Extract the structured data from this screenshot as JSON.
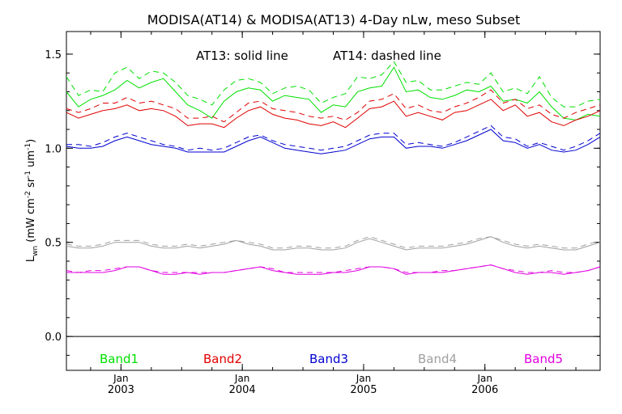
{
  "chart_data": {
    "type": "line",
    "title": "MODISA(AT14) & MODISA(AT13) 4-Day nLw, meso Subset",
    "ylabel": "L_wn (mW cm^-2 sr^-1 um^-1)",
    "ylabel_main": "L",
    "ylabel_sub": "wn",
    "ylabel_units_parts": [
      " (mW cm",
      "-2",
      " sr",
      "-1",
      " um",
      "-1",
      ")"
    ],
    "xlabel": "",
    "annotation_left": "AT13: solid line",
    "annotation_right": "AT14: dashed line",
    "ylim": [
      -0.18,
      1.62
    ],
    "xlim": [
      2002.55,
      2006.95
    ],
    "y_ticks": [
      0.0,
      0.5,
      1.0,
      1.5
    ],
    "y_tick_labels": [
      "0.0",
      "0.5",
      "1.0",
      "1.5"
    ],
    "x_ticks": [
      {
        "x": 2003.0,
        "month": "Jan",
        "year": "2003"
      },
      {
        "x": 2004.0,
        "month": "Jan",
        "year": "2004"
      },
      {
        "x": 2005.0,
        "month": "Jan",
        "year": "2005"
      },
      {
        "x": 2006.0,
        "month": "Jan",
        "year": "2006"
      }
    ],
    "zero_line": 0.0,
    "legend_placement": "bottom, inside plot",
    "x": [
      2002.55,
      2002.65,
      2002.75,
      2002.85,
      2002.95,
      2003.05,
      2003.15,
      2003.25,
      2003.35,
      2003.45,
      2003.55,
      2003.65,
      2003.75,
      2003.85,
      2003.95,
      2004.05,
      2004.15,
      2004.25,
      2004.35,
      2004.45,
      2004.55,
      2004.65,
      2004.75,
      2004.85,
      2004.95,
      2005.05,
      2005.15,
      2005.25,
      2005.35,
      2005.45,
      2005.55,
      2005.65,
      2005.75,
      2005.85,
      2005.95,
      2006.05,
      2006.15,
      2006.25,
      2006.35,
      2006.45,
      2006.55,
      2006.65,
      2006.75,
      2006.85,
      2006.95
    ],
    "series": [
      {
        "name": "Band1",
        "color": "#00e000",
        "at13": [
          1.3,
          1.22,
          1.26,
          1.28,
          1.31,
          1.36,
          1.32,
          1.35,
          1.37,
          1.3,
          1.23,
          1.2,
          1.16,
          1.25,
          1.3,
          1.32,
          1.31,
          1.25,
          1.28,
          1.27,
          1.26,
          1.19,
          1.23,
          1.22,
          1.3,
          1.32,
          1.33,
          1.43,
          1.3,
          1.31,
          1.27,
          1.26,
          1.28,
          1.31,
          1.3,
          1.33,
          1.25,
          1.26,
          1.24,
          1.3,
          1.22,
          1.16,
          1.15,
          1.18,
          1.17
        ],
        "at14": [
          1.38,
          1.28,
          1.31,
          1.3,
          1.4,
          1.43,
          1.37,
          1.41,
          1.4,
          1.35,
          1.28,
          1.26,
          1.23,
          1.31,
          1.36,
          1.37,
          1.35,
          1.29,
          1.32,
          1.33,
          1.31,
          1.24,
          1.27,
          1.29,
          1.38,
          1.37,
          1.39,
          1.46,
          1.35,
          1.36,
          1.31,
          1.31,
          1.33,
          1.35,
          1.34,
          1.4,
          1.3,
          1.32,
          1.29,
          1.38,
          1.27,
          1.22,
          1.22,
          1.25,
          1.26
        ]
      },
      {
        "name": "Band2",
        "color": "#e00000",
        "at13": [
          1.19,
          1.16,
          1.18,
          1.2,
          1.21,
          1.23,
          1.2,
          1.21,
          1.2,
          1.17,
          1.12,
          1.13,
          1.13,
          1.11,
          1.16,
          1.2,
          1.22,
          1.18,
          1.16,
          1.15,
          1.13,
          1.12,
          1.14,
          1.11,
          1.16,
          1.21,
          1.22,
          1.25,
          1.17,
          1.19,
          1.17,
          1.15,
          1.19,
          1.2,
          1.23,
          1.26,
          1.2,
          1.23,
          1.17,
          1.19,
          1.14,
          1.12,
          1.15,
          1.17,
          1.2
        ],
        "at14": [
          1.21,
          1.19,
          1.21,
          1.24,
          1.24,
          1.27,
          1.24,
          1.25,
          1.23,
          1.21,
          1.16,
          1.16,
          1.17,
          1.14,
          1.19,
          1.24,
          1.25,
          1.21,
          1.2,
          1.19,
          1.17,
          1.16,
          1.17,
          1.15,
          1.19,
          1.25,
          1.26,
          1.29,
          1.21,
          1.23,
          1.2,
          1.19,
          1.22,
          1.24,
          1.27,
          1.31,
          1.24,
          1.26,
          1.21,
          1.23,
          1.18,
          1.16,
          1.19,
          1.21,
          1.23
        ]
      },
      {
        "name": "Band3",
        "color": "#0000d0",
        "at13": [
          1.01,
          1.0,
          1.0,
          1.01,
          1.04,
          1.06,
          1.04,
          1.02,
          1.01,
          1.0,
          0.98,
          0.98,
          0.98,
          0.98,
          1.01,
          1.04,
          1.06,
          1.03,
          1.0,
          0.99,
          0.98,
          0.97,
          0.98,
          0.99,
          1.02,
          1.05,
          1.06,
          1.06,
          1.0,
          1.01,
          1.01,
          1.0,
          1.02,
          1.04,
          1.07,
          1.1,
          1.04,
          1.03,
          1.0,
          1.02,
          0.99,
          0.98,
          0.99,
          1.02,
          1.06
        ],
        "at14": [
          1.02,
          1.02,
          1.01,
          1.03,
          1.06,
          1.08,
          1.06,
          1.04,
          1.02,
          1.01,
          0.99,
          1.0,
          0.99,
          1.0,
          1.03,
          1.06,
          1.07,
          1.04,
          1.02,
          1.01,
          1.0,
          0.99,
          1.0,
          1.01,
          1.04,
          1.07,
          1.08,
          1.08,
          1.02,
          1.03,
          1.02,
          1.01,
          1.03,
          1.06,
          1.09,
          1.12,
          1.06,
          1.05,
          1.01,
          1.03,
          1.01,
          0.99,
          1.01,
          1.04,
          1.08
        ]
      },
      {
        "name": "Band4",
        "color": "#a0a0a0",
        "at13": [
          0.48,
          0.47,
          0.47,
          0.48,
          0.5,
          0.5,
          0.5,
          0.48,
          0.47,
          0.47,
          0.48,
          0.47,
          0.48,
          0.49,
          0.51,
          0.49,
          0.48,
          0.46,
          0.46,
          0.47,
          0.47,
          0.46,
          0.46,
          0.47,
          0.5,
          0.52,
          0.5,
          0.48,
          0.46,
          0.47,
          0.47,
          0.47,
          0.48,
          0.49,
          0.51,
          0.53,
          0.5,
          0.48,
          0.47,
          0.48,
          0.47,
          0.46,
          0.46,
          0.48,
          0.5
        ],
        "at14": [
          0.49,
          0.48,
          0.48,
          0.49,
          0.51,
          0.51,
          0.51,
          0.49,
          0.48,
          0.48,
          0.49,
          0.48,
          0.49,
          0.5,
          0.51,
          0.5,
          0.49,
          0.47,
          0.47,
          0.48,
          0.48,
          0.47,
          0.47,
          0.48,
          0.51,
          0.53,
          0.51,
          0.49,
          0.47,
          0.48,
          0.48,
          0.48,
          0.49,
          0.5,
          0.52,
          0.53,
          0.51,
          0.49,
          0.48,
          0.49,
          0.48,
          0.47,
          0.47,
          0.49,
          0.51
        ]
      },
      {
        "name": "Band5",
        "color": "#e000e0",
        "at13": [
          0.34,
          0.34,
          0.34,
          0.34,
          0.35,
          0.37,
          0.37,
          0.35,
          0.33,
          0.33,
          0.34,
          0.33,
          0.34,
          0.34,
          0.35,
          0.36,
          0.37,
          0.35,
          0.34,
          0.33,
          0.33,
          0.33,
          0.34,
          0.34,
          0.35,
          0.37,
          0.37,
          0.36,
          0.33,
          0.34,
          0.34,
          0.34,
          0.35,
          0.36,
          0.37,
          0.38,
          0.36,
          0.34,
          0.33,
          0.34,
          0.34,
          0.33,
          0.34,
          0.35,
          0.37
        ],
        "at14": [
          0.35,
          0.34,
          0.35,
          0.35,
          0.36,
          0.37,
          0.37,
          0.35,
          0.34,
          0.34,
          0.34,
          0.34,
          0.34,
          0.34,
          0.35,
          0.36,
          0.37,
          0.36,
          0.34,
          0.34,
          0.34,
          0.34,
          0.34,
          0.35,
          0.36,
          0.37,
          0.37,
          0.36,
          0.34,
          0.34,
          0.34,
          0.35,
          0.35,
          0.36,
          0.37,
          0.38,
          0.36,
          0.35,
          0.34,
          0.34,
          0.35,
          0.34,
          0.34,
          0.35,
          0.37
        ]
      }
    ]
  }
}
